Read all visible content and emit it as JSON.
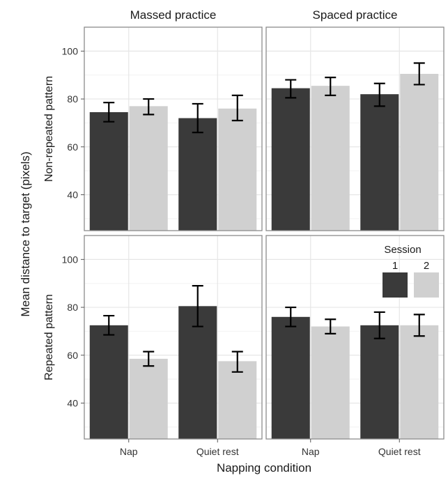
{
  "chart_data": {
    "type": "bar",
    "xlabel": "Napping condition",
    "ylabel": "Mean distance to target (pixels)",
    "ylim": [
      25,
      110
    ],
    "yticks": [
      40,
      60,
      80,
      100
    ],
    "grid": true,
    "categories": [
      "Nap",
      "Quiet rest"
    ],
    "columns": [
      "Massed practice",
      "Spaced practice"
    ],
    "rows": [
      "Non-repeated pattern",
      "Repeated pattern"
    ],
    "legend": {
      "title": "Session",
      "placement": "top-right of bottom-right panel",
      "items": [
        {
          "label": "1",
          "color": "#3a3a3a"
        },
        {
          "label": "2",
          "color": "#d0d0d0"
        }
      ]
    },
    "panels": [
      {
        "row": "Non-repeated pattern",
        "column": "Massed practice",
        "series": [
          {
            "name": "1",
            "values": [
              74.5,
              72.0
            ],
            "error_low": [
              70.5,
              66.0
            ],
            "error_high": [
              78.5,
              78.0
            ]
          },
          {
            "name": "2",
            "values": [
              77.0,
              76.0
            ],
            "error_low": [
              73.5,
              71.0
            ],
            "error_high": [
              80.0,
              81.5
            ]
          }
        ]
      },
      {
        "row": "Non-repeated pattern",
        "column": "Spaced practice",
        "series": [
          {
            "name": "1",
            "values": [
              84.5,
              82.0
            ],
            "error_low": [
              80.5,
              77.0
            ],
            "error_high": [
              88.0,
              86.5
            ]
          },
          {
            "name": "2",
            "values": [
              85.5,
              90.5
            ],
            "error_low": [
              81.5,
              86.0
            ],
            "error_high": [
              89.0,
              95.0
            ]
          }
        ]
      },
      {
        "row": "Repeated pattern",
        "column": "Massed practice",
        "series": [
          {
            "name": "1",
            "values": [
              72.5,
              80.5
            ],
            "error_low": [
              68.5,
              72.0
            ],
            "error_high": [
              76.5,
              89.0
            ]
          },
          {
            "name": "2",
            "values": [
              58.5,
              57.5
            ],
            "error_low": [
              55.5,
              53.0
            ],
            "error_high": [
              61.5,
              61.5
            ]
          }
        ]
      },
      {
        "row": "Repeated pattern",
        "column": "Spaced practice",
        "series": [
          {
            "name": "1",
            "values": [
              76.0,
              72.5
            ],
            "error_low": [
              72.0,
              67.0
            ],
            "error_high": [
              80.0,
              78.0
            ]
          },
          {
            "name": "2",
            "values": [
              72.0,
              72.5
            ],
            "error_low": [
              69.0,
              68.0
            ],
            "error_high": [
              75.0,
              77.0
            ]
          }
        ]
      }
    ]
  }
}
